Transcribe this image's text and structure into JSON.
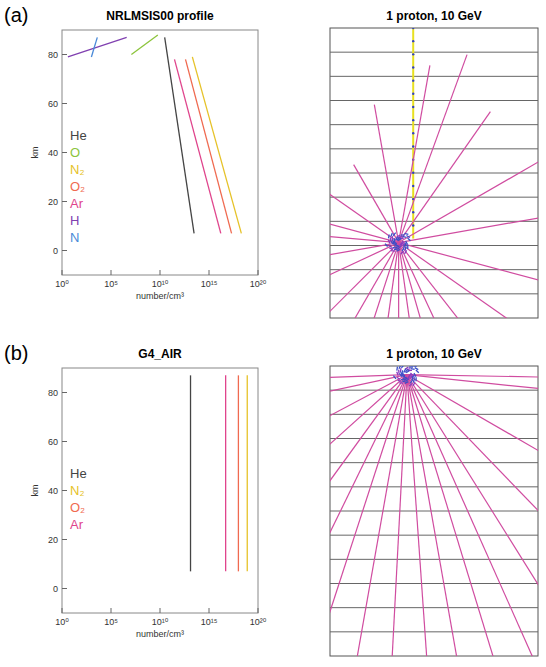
{
  "panels": [
    {
      "letter": "(a)",
      "simulation_title": "1 proton, 10 GeV"
    },
    {
      "letter": "(b)",
      "simulation_title": "1 proton, 10 GeV"
    }
  ],
  "chart_data": [
    {
      "type": "line",
      "title": "NRLMSIS00 profile",
      "x_label": "number/cm³",
      "y_label": "km",
      "log": "x",
      "grid": false,
      "legend": "left",
      "xlim": [
        1,
        1e+20
      ],
      "xticks": [
        {
          "value": 1,
          "label": "10⁰"
        },
        {
          "value": 100000,
          "label": "10⁵"
        },
        {
          "value": 10000000000.0,
          "label": "10¹⁰"
        },
        {
          "value": 1000000000000000.0,
          "label": "10¹⁵"
        },
        {
          "value": 1e+20,
          "label": "10²⁰"
        }
      ],
      "ylim": [
        -10,
        90
      ],
      "yticks": [
        0,
        20,
        40,
        60,
        80
      ],
      "series": [
        {
          "name": "He",
          "color": "#444444",
          "x": [
            30000000000000.0,
            30000000000.0
          ],
          "values": [
            7,
            87
          ]
        },
        {
          "name": "O",
          "color": "#8cc43c",
          "x": [
            12000000,
            6000000000
          ],
          "values": [
            80,
            88
          ]
        },
        {
          "name": "N₂",
          "color": "#e6c229",
          "x": [
            2e+18,
            20000000000000.0
          ],
          "values": [
            7,
            79
          ]
        },
        {
          "name": "O₂",
          "color": "#f06a50",
          "x": [
            2e+17,
            4000000000000.0
          ],
          "values": [
            7,
            78
          ]
        },
        {
          "name": "Ar",
          "color": "#e0448c",
          "x": [
            1.6e+16,
            300000000000.0
          ],
          "values": [
            7,
            78
          ]
        },
        {
          "name": "H",
          "color": "#8040b0",
          "x": [
            4,
            4000000
          ],
          "values": [
            79,
            87
          ]
        },
        {
          "name": "N",
          "color": "#4a8ad8",
          "x": [
            1000,
            4000
          ],
          "values": [
            79,
            87
          ]
        }
      ]
    },
    {
      "type": "line",
      "title": "G4_AIR",
      "x_label": "number/cm³",
      "y_label": "km",
      "log": "x",
      "grid": false,
      "legend": "left",
      "xlim": [
        1,
        1e+20
      ],
      "xticks": [
        {
          "value": 1,
          "label": "10⁰"
        },
        {
          "value": 100000,
          "label": "10⁵"
        },
        {
          "value": 10000000000.0,
          "label": "10¹⁰"
        },
        {
          "value": 1000000000000000.0,
          "label": "10¹⁵"
        },
        {
          "value": 1e+20,
          "label": "10²⁰"
        }
      ],
      "ylim": [
        -10,
        90
      ],
      "yticks": [
        0,
        20,
        40,
        60,
        80
      ],
      "series": [
        {
          "name": "He",
          "color": "#444444",
          "x": [
            13000000000000.0,
            13000000000000.0
          ],
          "values": [
            7,
            87
          ]
        },
        {
          "name": "N₂",
          "color": "#e6c229",
          "x": [
            8e+18,
            8e+18
          ],
          "values": [
            7,
            87
          ]
        },
        {
          "name": "O₂",
          "color": "#f06a50",
          "x": [
            1e+18,
            1e+18
          ],
          "values": [
            7,
            87
          ]
        },
        {
          "name": "Ar",
          "color": "#e0448c",
          "x": [
            5e+16,
            5e+16
          ],
          "values": [
            7,
            87
          ]
        }
      ]
    }
  ]
}
